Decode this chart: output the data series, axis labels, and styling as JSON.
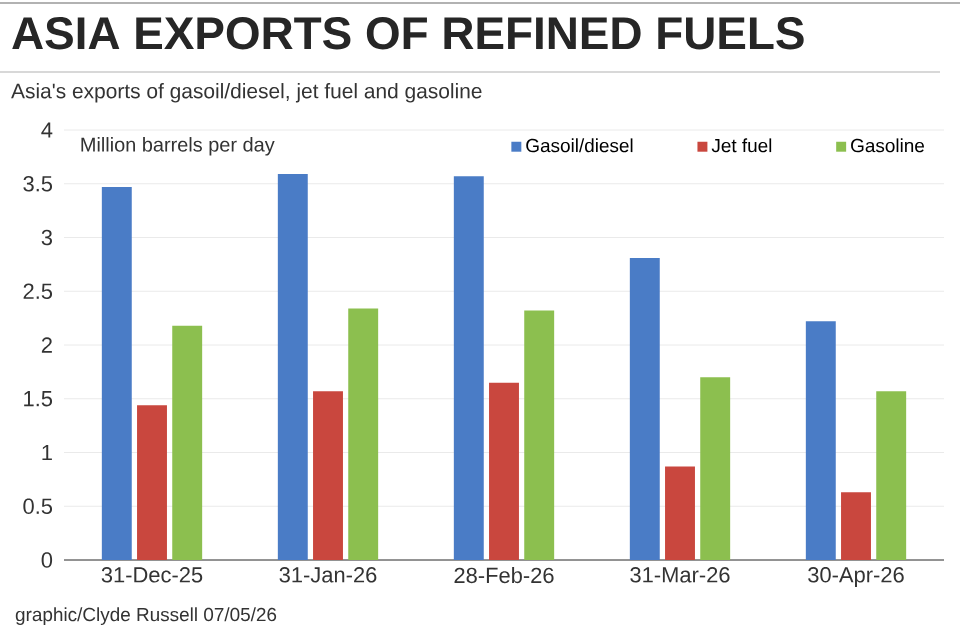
{
  "chart_data": {
    "type": "bar",
    "title": "ASIA EXPORTS OF REFINED FUELS",
    "subtitle": "Asia's exports of gasoil/diesel, jet fuel and gasoline",
    "ylabel": "Million barrels per day",
    "categories": [
      "31-Dec-25",
      "31-Jan-26",
      "28-Feb-26",
      "31-Mar-26",
      "30-Apr-26"
    ],
    "series": [
      {
        "name": "Gasoil/diesel",
        "color": "#4a7cc6",
        "values": [
          3.47,
          3.59,
          3.57,
          2.81,
          2.22
        ]
      },
      {
        "name": "Jet fuel",
        "color": "#c9473e",
        "values": [
          1.44,
          1.57,
          1.65,
          0.87,
          0.63
        ]
      },
      {
        "name": "Gasoline",
        "color": "#8cbf4f",
        "values": [
          2.18,
          2.34,
          2.32,
          1.7,
          1.57
        ]
      }
    ],
    "ylim": [
      0,
      4
    ],
    "yticks": [
      0,
      0.5,
      1,
      1.5,
      2,
      2.5,
      3,
      3.5,
      4
    ],
    "grid": "y",
    "legend": "top",
    "annotations": [
      "graphic/Clyde Russell 07/05/26"
    ]
  }
}
